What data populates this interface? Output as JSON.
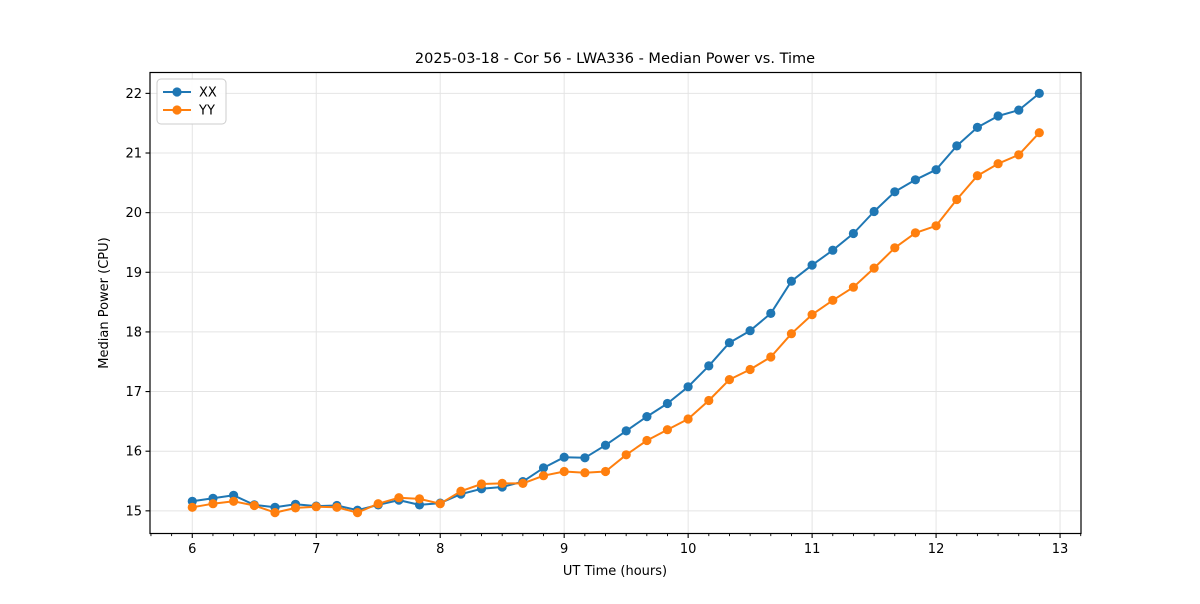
{
  "chart_data": {
    "type": "line",
    "title": "2025-03-18 - Cor 56 - LWA336 - Median Power vs. Time",
    "xlabel": "UT Time (hours)",
    "ylabel": "Median Power (CPU)",
    "xlim": [
      5.659,
      13.169
    ],
    "ylim": [
      14.62,
      22.35
    ],
    "x_major_ticks": [
      6,
      7,
      8,
      9,
      10,
      11,
      12,
      13
    ],
    "y_major_ticks": [
      15,
      16,
      17,
      18,
      19,
      20,
      21,
      22
    ],
    "x_minor_step": 0.1666667,
    "grid": "major",
    "legend_position": "upper-left",
    "background_color": "#ffffff",
    "grid_color": "#e4e4e4",
    "x": [
      6.0,
      6.167,
      6.333,
      6.5,
      6.667,
      6.833,
      7.0,
      7.167,
      7.333,
      7.5,
      7.667,
      7.833,
      8.0,
      8.167,
      8.333,
      8.5,
      8.667,
      8.833,
      9.0,
      9.167,
      9.333,
      9.5,
      9.667,
      9.833,
      10.0,
      10.167,
      10.333,
      10.5,
      10.667,
      10.833,
      11.0,
      11.167,
      11.333,
      11.5,
      11.667,
      11.833,
      12.0,
      12.167,
      12.333,
      12.5,
      12.667,
      12.833
    ],
    "series": [
      {
        "name": "XX",
        "color": "#1f77b4",
        "values": [
          15.16,
          15.21,
          15.26,
          15.1,
          15.06,
          15.11,
          15.08,
          15.09,
          15.01,
          15.1,
          15.18,
          15.1,
          15.13,
          15.28,
          15.37,
          15.4,
          15.49,
          15.72,
          15.9,
          15.89,
          16.1,
          16.34,
          16.58,
          16.8,
          17.08,
          17.43,
          17.82,
          18.02,
          18.31,
          18.85,
          19.12,
          19.37,
          19.65,
          20.02,
          20.35,
          20.55,
          20.72,
          21.12,
          21.43,
          21.62,
          21.72,
          22.0
        ]
      },
      {
        "name": "YY",
        "color": "#ff7f0e",
        "values": [
          15.06,
          15.12,
          15.16,
          15.09,
          14.97,
          15.05,
          15.07,
          15.06,
          14.97,
          15.12,
          15.22,
          15.2,
          15.12,
          15.33,
          15.45,
          15.46,
          15.46,
          15.59,
          15.66,
          15.64,
          15.66,
          15.94,
          16.18,
          16.36,
          16.54,
          16.85,
          17.2,
          17.37,
          17.58,
          17.97,
          18.29,
          18.53,
          18.75,
          19.07,
          19.41,
          19.66,
          19.78,
          20.22,
          20.62,
          20.82,
          20.97,
          21.34
        ]
      }
    ]
  }
}
